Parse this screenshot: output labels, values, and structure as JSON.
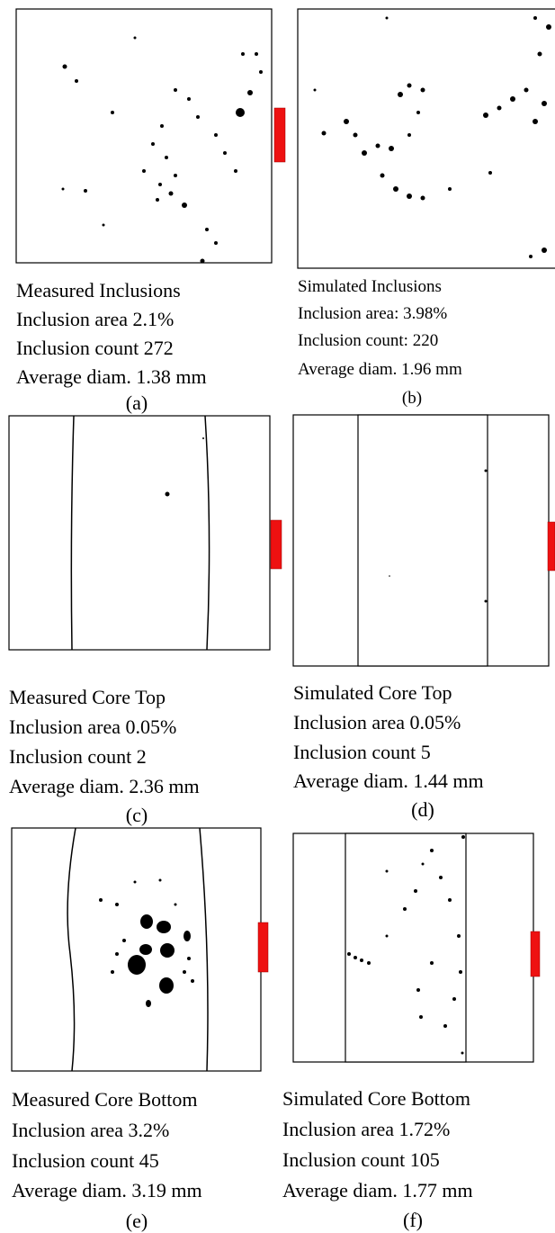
{
  "panels": [
    {
      "title": "Measured Inclusions",
      "lines": [
        "Inclusion area 2.1%",
        "Inclusion count 272",
        "Average diam. 1.38 mm"
      ],
      "label": "(a)"
    },
    {
      "title": "Simulated Inclusions",
      "lines": [
        "Inclusion area:  3.98%",
        "Inclusion count: 220",
        "Average diam. 1.96 mm"
      ],
      "label": "(b)"
    },
    {
      "title": "Measured Core Top",
      "lines": [
        "Inclusion area 0.05%",
        "Inclusion count 2",
        "Average diam. 2.36 mm"
      ],
      "label": "(c)"
    },
    {
      "title": "Simulated Core Top",
      "lines": [
        "Inclusion area 0.05%",
        "Inclusion count 5",
        "Average diam. 1.44 mm"
      ],
      "label": "(d)"
    },
    {
      "title": "Measured Core Bottom",
      "lines": [
        "Inclusion area 3.2%",
        "Inclusion count 45",
        "Average diam. 3.19 mm"
      ],
      "label": "(e)"
    },
    {
      "title": "Simulated Core Bottom",
      "lines": [
        "Inclusion area 1.72%",
        "Inclusion count 105",
        "Average diam. 1.77 mm"
      ],
      "label": "(f)"
    }
  ]
}
